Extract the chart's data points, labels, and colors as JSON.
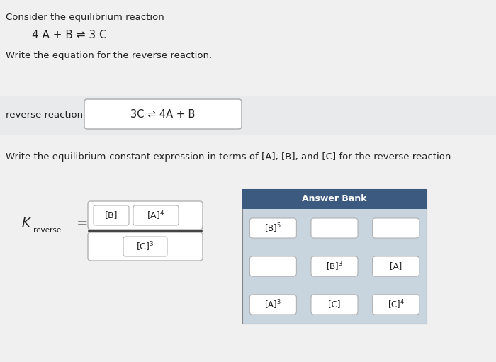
{
  "bg_color": "#f0f0f0",
  "title_line1": "Consider the equilibrium reaction",
  "reaction": "4 A + B ⇌ 3 C",
  "instruction1": "Write the equation for the reverse reaction.",
  "reverse_label": "reverse reaction:",
  "reverse_answer": "3C ⇌ 4A + B",
  "instruction2": "Write the equilibrium-constant expression in terms of [A], [B], and [C] for the reverse reaction.",
  "k_label": "K",
  "k_subscript": "reverse",
  "numerator_items": [
    "[B]",
    "[A]$^4$"
  ],
  "denominator_items": [
    "[C]$^3$"
  ],
  "answer_bank_title": "Answer Bank",
  "answer_bank_header_color": "#3c5a80",
  "answer_bank_items_text": [
    [
      "[B]$^5$",
      "",
      ""
    ],
    [
      "",
      "[B]$^3$",
      "[A]"
    ],
    [
      "[A]$^3$",
      "[C]",
      "[C]$^4$"
    ]
  ],
  "answer_bank_bg": "#c8d4de",
  "text_color": "#222222",
  "white_bg": "#f0f0f0",
  "box_border": "#aaaaaa"
}
